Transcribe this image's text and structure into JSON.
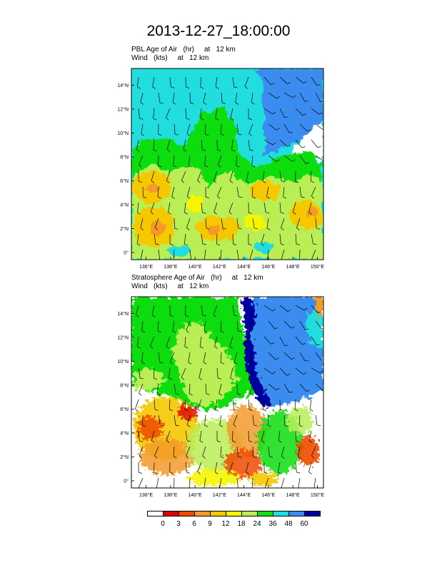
{
  "title": "2013-12-27_18:00:00",
  "panels": [
    {
      "id": "pbl",
      "line1": "PBL Age of Air   (hr)     at   12 km",
      "line2": "Wind   (kts)     at   12 km"
    },
    {
      "id": "strat",
      "line1": "Stratosphere Age of Air   (hr)     at   12 km",
      "line2": "Wind   (kts)     at   12 km"
    }
  ],
  "axes": {
    "lat_ticks": [
      "0°",
      "2°N",
      "4°N",
      "6°N",
      "8°N",
      "10°N",
      "12°N",
      "14°N"
    ],
    "lat_values": [
      0,
      2,
      4,
      6,
      8,
      10,
      12,
      14
    ],
    "lon_ticks": [
      "136°E",
      "138°E",
      "140°E",
      "142°E",
      "144°E",
      "146°E",
      "148°E",
      "150°E"
    ],
    "lon_values": [
      136,
      138,
      140,
      142,
      144,
      146,
      148,
      150
    ],
    "lon_range": [
      134.8,
      150.5
    ],
    "lat_range": [
      -0.6,
      15.4
    ]
  },
  "colorbar": {
    "labels": [
      "0",
      "3",
      "6",
      "9",
      "12",
      "18",
      "24",
      "36",
      "48",
      "60"
    ],
    "colors": [
      "#ffffff",
      "#dd0000",
      "#f04a00",
      "#f59a28",
      "#f5c800",
      "#f5f500",
      "#b9ee55",
      "#11dd11",
      "#22dddd",
      "#3a8cf0",
      "#0000a0"
    ]
  }
}
